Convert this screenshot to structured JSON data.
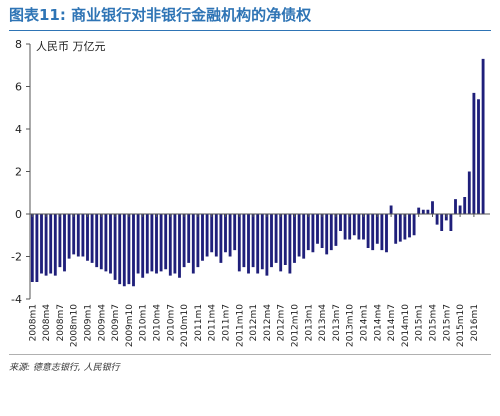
{
  "figure": {
    "title": "图表11: 商业银行对非银行金融机构的净债权",
    "source": "来源: 德意志银行, 人民银行"
  },
  "colors": {
    "bar": "#1f1f7a",
    "title": "#2e74b5",
    "axis": "#555555",
    "text": "#222222"
  },
  "chart_data": {
    "type": "bar",
    "ylabel": "人民币 万亿元",
    "xlabel": "",
    "ylim": [
      -4,
      8
    ],
    "yticks": [
      -4,
      -2,
      0,
      2,
      4,
      6,
      8
    ],
    "grid": false,
    "legend": "none",
    "categories": [
      "2008m1",
      "2008m2",
      "2008m3",
      "2008m4",
      "2008m5",
      "2008m6",
      "2008m7",
      "2008m8",
      "2008m9",
      "2008m10",
      "2008m11",
      "2008m12",
      "2009m1",
      "2009m2",
      "2009m3",
      "2009m4",
      "2009m5",
      "2009m6",
      "2009m7",
      "2009m8",
      "2009m9",
      "2009m10",
      "2009m11",
      "2009m12",
      "2010m1",
      "2010m2",
      "2010m3",
      "2010m4",
      "2010m5",
      "2010m6",
      "2010m7",
      "2010m8",
      "2010m9",
      "2010m10",
      "2010m11",
      "2010m12",
      "2011m1",
      "2011m2",
      "2011m3",
      "2011m4",
      "2011m5",
      "2011m6",
      "2011m7",
      "2011m8",
      "2011m9",
      "2011m10",
      "2011m11",
      "2011m12",
      "2012m1",
      "2012m2",
      "2012m3",
      "2012m4",
      "2012m5",
      "2012m6",
      "2012m7",
      "2012m8",
      "2012m9",
      "2012m10",
      "2012m11",
      "2012m12",
      "2013m1",
      "2013m2",
      "2013m3",
      "2013m4",
      "2013m5",
      "2013m6",
      "2013m7",
      "2013m8",
      "2013m9",
      "2013m10",
      "2013m11",
      "2013m12",
      "2014m1",
      "2014m2",
      "2014m3",
      "2014m4",
      "2014m5",
      "2014m6",
      "2014m7",
      "2014m8",
      "2014m9",
      "2014m10",
      "2014m11",
      "2014m12",
      "2015m1",
      "2015m2",
      "2015m3",
      "2015m4",
      "2015m5",
      "2015m6",
      "2015m7",
      "2015m8",
      "2015m9",
      "2015m10",
      "2015m11",
      "2015m12",
      "2016m1",
      "2016m2",
      "2016m3",
      "2016m4"
    ],
    "tick_labels": [
      "2008m1",
      "2008m4",
      "2008m7",
      "2008m10",
      "2009m1",
      "2009m4",
      "2009m7",
      "2009m10",
      "2010m1",
      "2010m4",
      "2010m7",
      "2010m10",
      "2011m1",
      "2011m4",
      "2011m7",
      "2011m10",
      "2012m1",
      "2012m4",
      "2012m7",
      "2012m10",
      "2013m1",
      "2013m4",
      "2013m7",
      "2013m10",
      "2014m1",
      "2014m4",
      "2014m7",
      "2014m10",
      "2015m1",
      "2015m4",
      "2015m7",
      "2015m10",
      "2016m1"
    ],
    "series": [
      {
        "values": [
          -3.2,
          -3.2,
          -2.8,
          -2.9,
          -2.8,
          -2.9,
          -2.5,
          -2.7,
          -2.1,
          -1.9,
          -2.0,
          -2.0,
          -2.2,
          -2.3,
          -2.5,
          -2.6,
          -2.7,
          -2.8,
          -3.1,
          -3.3,
          -3.4,
          -3.3,
          -3.4,
          -2.8,
          -3.0,
          -2.8,
          -2.7,
          -2.8,
          -2.7,
          -2.6,
          -2.9,
          -2.8,
          -3.0,
          -2.5,
          -2.3,
          -2.8,
          -2.5,
          -2.2,
          -2.0,
          -1.8,
          -2.0,
          -2.3,
          -1.8,
          -2.0,
          -1.7,
          -2.7,
          -2.5,
          -2.8,
          -2.5,
          -2.8,
          -2.6,
          -2.9,
          -2.5,
          -2.3,
          -2.7,
          -2.4,
          -2.8,
          -2.3,
          -2.0,
          -2.1,
          -1.7,
          -1.8,
          -1.4,
          -1.6,
          -1.9,
          -1.7,
          -1.5,
          -0.8,
          -1.2,
          -1.2,
          -1.0,
          -1.2,
          -1.2,
          -1.6,
          -1.7,
          -1.4,
          -1.7,
          -1.8,
          0.4,
          -1.4,
          -1.3,
          -1.2,
          -1.1,
          -1.0,
          0.3,
          0.2,
          0.2,
          0.6,
          -0.5,
          -0.8,
          -0.3,
          -0.8,
          0.7,
          0.4,
          0.8,
          2.0,
          5.7,
          5.4,
          7.3,
          0
        ]
      }
    ]
  }
}
